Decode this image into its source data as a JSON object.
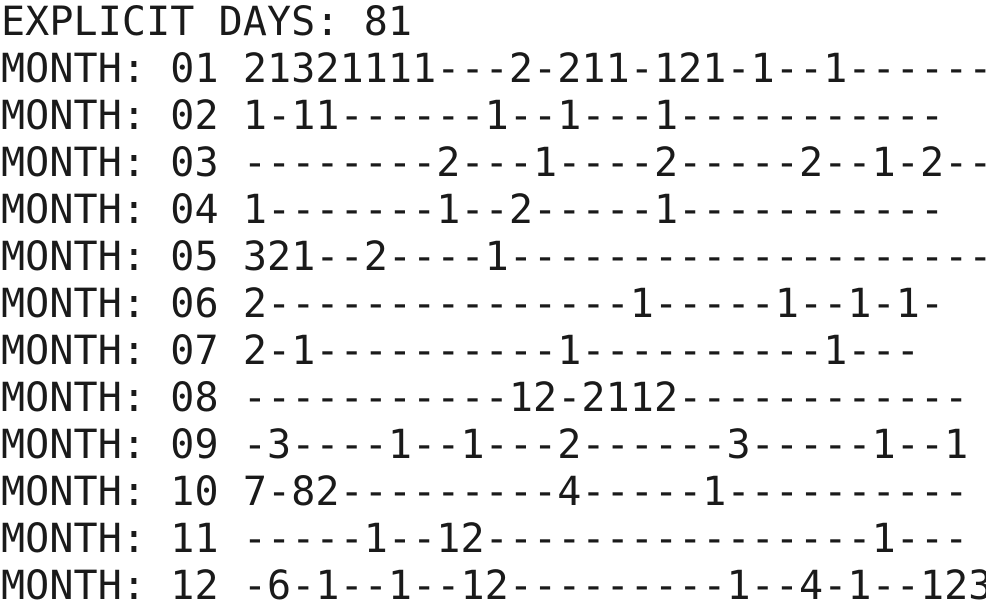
{
  "header": {
    "label": "EXPLICIT DAYS:",
    "value": "81"
  },
  "month_label": "MONTH:",
  "months": [
    {
      "num": "01",
      "days": "21321111---2-211-121-1--1------"
    },
    {
      "num": "02",
      "days": "1-11------1--1---1-----------"
    },
    {
      "num": "03",
      "days": "--------2---1----2-----2--1-2--"
    },
    {
      "num": "04",
      "days": "1-------1--2-----1-----------"
    },
    {
      "num": "05",
      "days": "321--2----1--------------------"
    },
    {
      "num": "06",
      "days": "2---------------1-----1--1-1-"
    },
    {
      "num": "07",
      "days": "2-1----------1----------1---"
    },
    {
      "num": "08",
      "days": "-----------12-2112------------"
    },
    {
      "num": "09",
      "days": "-3----1--1---2------3-----1--1"
    },
    {
      "num": "10",
      "days": "7-82---------4-----1----------"
    },
    {
      "num": "11",
      "days": "-----1--12----------------1---"
    },
    {
      "num": "12",
      "days": "-6-1--1--12---------1--4-1--123"
    }
  ],
  "colors": {
    "text": "#1a1a1a",
    "background": "#ffffff"
  }
}
